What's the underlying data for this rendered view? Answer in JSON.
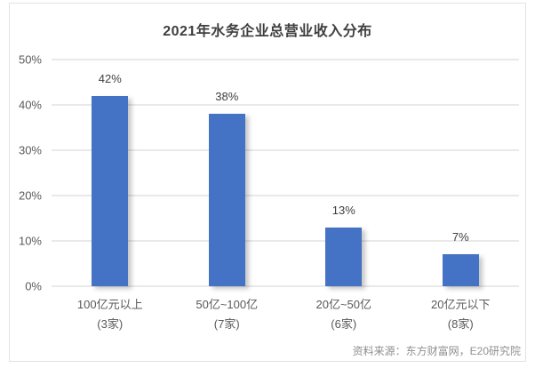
{
  "chart_data": {
    "type": "bar",
    "title": "2021年水务企业总营业收入分布",
    "categories": [
      "100亿元以上",
      "50亿~100亿",
      "20亿~50亿",
      "20亿元以下"
    ],
    "category_sublabels": [
      "(3家)",
      "(7家)",
      "(6家)",
      "(8家)"
    ],
    "values": [
      42,
      38,
      13,
      7
    ],
    "value_labels": [
      "42%",
      "38%",
      "13%",
      "7%"
    ],
    "ylim": [
      0,
      50
    ],
    "yticks": [
      0,
      10,
      20,
      30,
      40,
      50
    ],
    "ytick_labels": [
      "0%",
      "10%",
      "20%",
      "30%",
      "40%",
      "50%"
    ],
    "grid": true,
    "legend": "none",
    "bar_color": "#4472C4",
    "source_note": "资料来源：东方财富网，E20研究院"
  }
}
